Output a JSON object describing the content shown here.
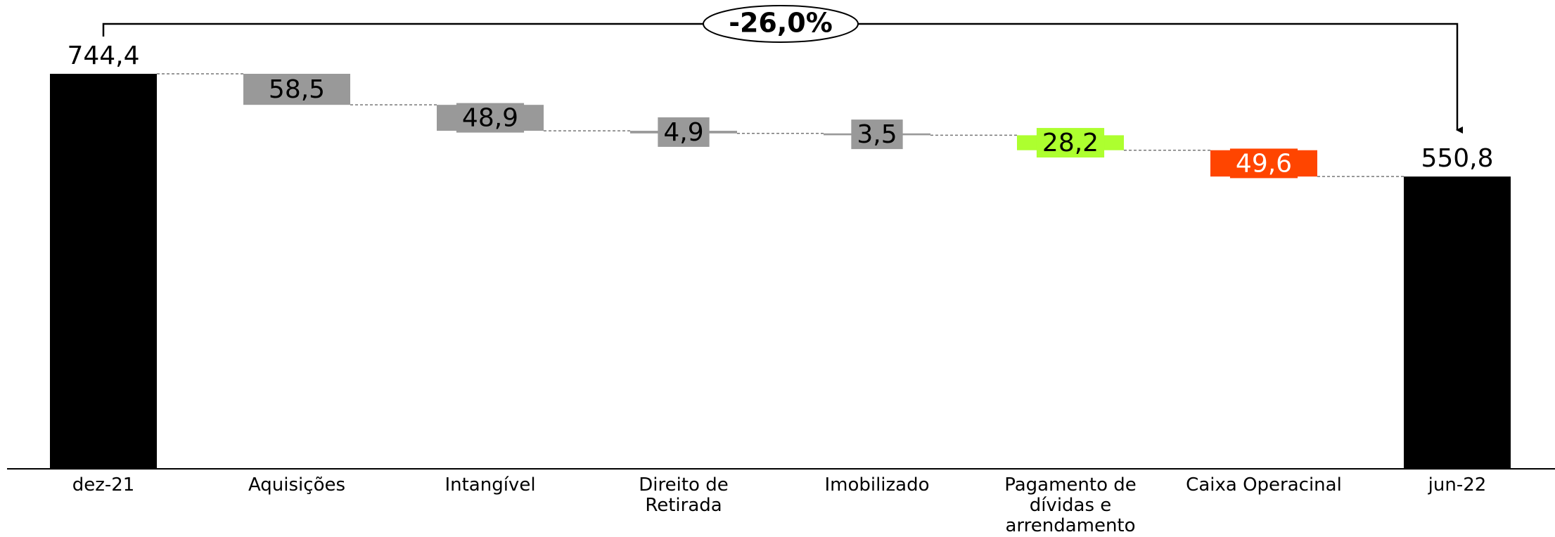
{
  "chart_data": {
    "type": "waterfall",
    "categories": [
      "dez-21",
      "Aquisições",
      "Intangível",
      "Direito de Retirada",
      "Imobilizado",
      "Pagamento de dívidas e arrendamento",
      "Caixa Operacinal",
      "jun-22"
    ],
    "values": [
      744.4,
      58.5,
      48.9,
      4.9,
      3.5,
      28.2,
      49.6,
      550.8
    ],
    "value_labels": [
      "744,4",
      "58,5",
      "48,9",
      "4,9",
      "3,5",
      "28,2",
      "49,6",
      "550,8"
    ],
    "colors": [
      "#000000",
      "#999999",
      "#999999",
      "#999999",
      "#999999",
      "#adff2f",
      "#ff4500",
      "#000000"
    ],
    "annotation": "-26,0%"
  }
}
